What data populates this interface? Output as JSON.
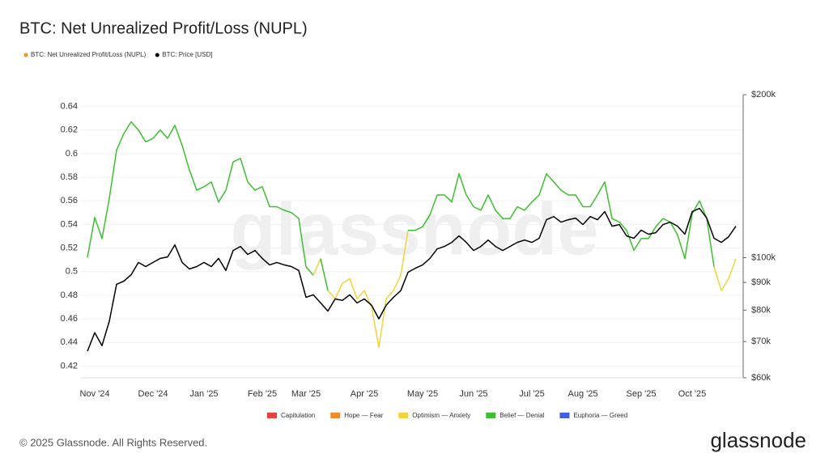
{
  "chart_data": {
    "type": "line",
    "title": "BTC: Net Unrealized Profit/Loss (NUPL)",
    "watermark": "glassnode",
    "categories": [
      null,
      "Nov '24",
      null,
      null,
      null,
      null,
      null,
      null,
      null,
      "Dec '24",
      null,
      null,
      null,
      null,
      null,
      null,
      "Jan '25",
      null,
      null,
      null,
      null,
      null,
      null,
      null,
      "Feb '25",
      null,
      null,
      null,
      null,
      null,
      "Mar '25",
      null,
      null,
      null,
      null,
      null,
      null,
      null,
      "Apr '25",
      null,
      null,
      null,
      null,
      null,
      null,
      null,
      "May '25",
      null,
      null,
      null,
      null,
      null,
      null,
      "Jun '25",
      null,
      null,
      null,
      null,
      null,
      null,
      null,
      "Jul '25",
      null,
      null,
      null,
      null,
      null,
      null,
      "Aug '25",
      null,
      null,
      null,
      null,
      null,
      null,
      null,
      "Sep '25",
      null,
      null,
      null,
      null,
      null,
      null,
      "Oct '25",
      null,
      null,
      null,
      null,
      null,
      null
    ],
    "series": [
      {
        "name": "BTC: Net Unrealized Profit/Loss (NUPL)",
        "color": "#f7931a",
        "values": [
          0.512,
          0.546,
          0.528,
          0.562,
          0.603,
          0.617,
          0.627,
          0.62,
          0.61,
          0.613,
          0.62,
          0.613,
          0.624,
          0.607,
          0.586,
          0.569,
          0.572,
          0.576,
          0.559,
          0.569,
          0.593,
          0.596,
          0.576,
          0.569,
          0.572,
          0.555,
          0.555,
          0.552,
          0.55,
          0.545,
          0.504,
          0.497,
          0.511,
          0.484,
          0.477,
          0.49,
          0.494,
          0.477,
          0.484,
          0.47,
          0.436,
          0.477,
          0.484,
          0.497,
          0.535,
          0.535,
          0.538,
          0.548,
          0.565,
          0.565,
          0.559,
          0.583,
          0.565,
          0.555,
          0.552,
          0.565,
          0.552,
          0.545,
          0.545,
          0.555,
          0.552,
          0.559,
          0.565,
          0.583,
          0.576,
          0.569,
          0.565,
          0.565,
          0.555,
          0.555,
          0.565,
          0.576,
          0.545,
          0.542,
          0.535,
          0.518,
          0.528,
          0.528,
          0.538,
          0.545,
          0.542,
          0.531,
          0.511,
          0.549,
          0.56,
          0.545,
          0.504,
          0.484,
          0.494,
          0.511
        ],
        "colors": [
          "#3dbf2f",
          "#3dbf2f",
          "#3dbf2f",
          "#3dbf2f",
          "#3dbf2f",
          "#3dbf2f",
          "#3dbf2f",
          "#3dbf2f",
          "#3dbf2f",
          "#3dbf2f",
          "#3dbf2f",
          "#3dbf2f",
          "#3dbf2f",
          "#3dbf2f",
          "#3dbf2f",
          "#3dbf2f",
          "#3dbf2f",
          "#3dbf2f",
          "#3dbf2f",
          "#3dbf2f",
          "#3dbf2f",
          "#3dbf2f",
          "#3dbf2f",
          "#3dbf2f",
          "#3dbf2f",
          "#3dbf2f",
          "#3dbf2f",
          "#3dbf2f",
          "#3dbf2f",
          "#3dbf2f",
          "#3dbf2f",
          "#f2d33c",
          "#3dbf2f",
          "#f2d33c",
          "#f2d33c",
          "#f2d33c",
          "#f2d33c",
          "#f2d33c",
          "#f2d33c",
          "#f2d33c",
          "#f2d33c",
          "#f2d33c",
          "#f2d33c",
          "#f2d33c",
          "#3dbf2f",
          "#3dbf2f",
          "#3dbf2f",
          "#3dbf2f",
          "#3dbf2f",
          "#3dbf2f",
          "#3dbf2f",
          "#3dbf2f",
          "#3dbf2f",
          "#3dbf2f",
          "#3dbf2f",
          "#3dbf2f",
          "#3dbf2f",
          "#3dbf2f",
          "#3dbf2f",
          "#3dbf2f",
          "#3dbf2f",
          "#3dbf2f",
          "#3dbf2f",
          "#3dbf2f",
          "#3dbf2f",
          "#3dbf2f",
          "#3dbf2f",
          "#3dbf2f",
          "#3dbf2f",
          "#3dbf2f",
          "#3dbf2f",
          "#3dbf2f",
          "#3dbf2f",
          "#3dbf2f",
          "#3dbf2f",
          "#3dbf2f",
          "#3dbf2f",
          "#3dbf2f",
          "#3dbf2f",
          "#3dbf2f",
          "#3dbf2f",
          "#3dbf2f",
          "#3dbf2f",
          "#3dbf2f",
          "#3dbf2f",
          "#3dbf2f",
          "#f2d33c",
          "#f2d33c",
          "#f2d33c",
          "#3dbf2f"
        ]
      },
      {
        "name": "BTC: Price [USD]",
        "color": "#000000",
        "axis": "y2",
        "values": [
          67200,
          72700,
          68800,
          76300,
          89300,
          90500,
          93000,
          98000,
          96300,
          98000,
          99700,
          100300,
          105600,
          98000,
          95300,
          96300,
          98000,
          96300,
          99700,
          94700,
          103100,
          104900,
          101400,
          103100,
          99700,
          97000,
          98000,
          97000,
          96300,
          94700,
          84500,
          85400,
          82500,
          79700,
          83900,
          83400,
          85400,
          82500,
          83900,
          81700,
          77100,
          81700,
          84500,
          86900,
          94000,
          95600,
          97000,
          99700,
          103800,
          104900,
          106700,
          109700,
          106700,
          103100,
          104900,
          107800,
          104900,
          103100,
          104900,
          106700,
          107800,
          106700,
          108600,
          117500,
          119100,
          116300,
          117500,
          118300,
          115100,
          119100,
          117500,
          121600,
          114300,
          115100,
          109700,
          108600,
          112400,
          110500,
          111200,
          115100,
          116300,
          114300,
          110500,
          121600,
          123300,
          118300,
          108600,
          106700,
          109300,
          114300
        ]
      }
    ],
    "zones": [
      {
        "name": "Capitulation",
        "color": "#e8413e"
      },
      {
        "name": "Hope — Fear",
        "color": "#f28c28"
      },
      {
        "name": "Optimism — Anxiety",
        "color": "#f2d33c"
      },
      {
        "name": "Belief — Denial",
        "color": "#3dbf2f"
      },
      {
        "name": "Euphoria — Greed",
        "color": "#3f5fe0"
      }
    ],
    "ylim": [
      0.41,
      0.65
    ],
    "yticks": [
      0.42,
      0.44,
      0.46,
      0.48,
      0.5,
      0.52,
      0.54,
      0.56,
      0.58,
      0.6,
      0.62,
      0.64
    ],
    "y2lim": [
      60000,
      200000
    ],
    "y2log": true,
    "y2ticks": [
      {
        "value": 60000,
        "label": "$60k"
      },
      {
        "value": 70000,
        "label": "$70k"
      },
      {
        "value": 80000,
        "label": "$80k"
      },
      {
        "value": 90000,
        "label": "$90k"
      },
      {
        "value": 100000,
        "label": "$100k"
      },
      {
        "value": 200000,
        "label": "$200k"
      }
    ],
    "grid": true
  },
  "footer": {
    "copyright": "© 2025 Glassnode. All Rights Reserved.",
    "logo": "glassnode"
  }
}
